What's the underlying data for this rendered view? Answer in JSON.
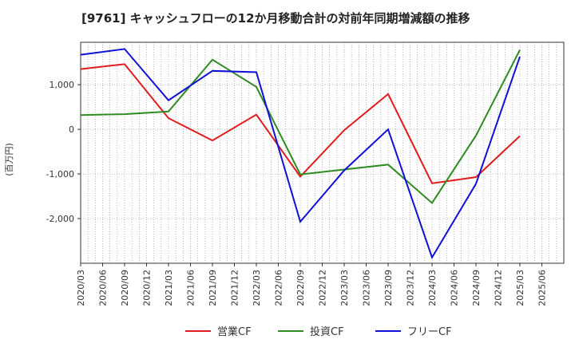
{
  "chart_data": {
    "type": "line",
    "title": "[9761]  キャッシュフローの12か月移動合計の対前年同期増減額の推移",
    "ylabel": "(百万円)",
    "xlabel": "",
    "ylim": [
      -3000,
      1950
    ],
    "yticks": [
      1000,
      0,
      -1000,
      -2000
    ],
    "ytick_labels": [
      "1,000",
      "0",
      "-1,000",
      "-2,000"
    ],
    "x_tick_labels": [
      "2020/03",
      "2020/06",
      "2020/09",
      "2020/12",
      "2021/03",
      "2021/06",
      "2021/09",
      "2021/12",
      "2022/03",
      "2022/06",
      "2022/09",
      "2022/12",
      "2023/03",
      "2023/06",
      "2023/09",
      "2023/12",
      "2024/03",
      "2024/06",
      "2024/09",
      "2024/12",
      "2025/03",
      "2025/06"
    ],
    "grid": true,
    "legend_position": "bottom",
    "series": [
      {
        "name": "営業CF",
        "color": "#e31a1c",
        "points": [
          {
            "x": "2020/03",
            "y": 1350
          },
          {
            "x": "2020/09",
            "y": 1460
          },
          {
            "x": "2021/03",
            "y": 250
          },
          {
            "x": "2021/09",
            "y": -250
          },
          {
            "x": "2022/03",
            "y": 330
          },
          {
            "x": "2022/09",
            "y": -1060
          },
          {
            "x": "2023/03",
            "y": -20
          },
          {
            "x": "2023/09",
            "y": 790
          },
          {
            "x": "2024/03",
            "y": -1210
          },
          {
            "x": "2024/09",
            "y": -1070
          },
          {
            "x": "2025/03",
            "y": -150
          }
        ]
      },
      {
        "name": "投資CF",
        "color": "#2e8b22",
        "points": [
          {
            "x": "2020/03",
            "y": 320
          },
          {
            "x": "2020/09",
            "y": 340
          },
          {
            "x": "2021/03",
            "y": 400
          },
          {
            "x": "2021/09",
            "y": 1560
          },
          {
            "x": "2022/03",
            "y": 950
          },
          {
            "x": "2022/09",
            "y": -1010
          },
          {
            "x": "2023/03",
            "y": -900
          },
          {
            "x": "2023/09",
            "y": -790
          },
          {
            "x": "2024/03",
            "y": -1650
          },
          {
            "x": "2024/09",
            "y": -140
          },
          {
            "x": "2025/03",
            "y": 1780
          }
        ]
      },
      {
        "name": "フリーCF",
        "color": "#1010d8",
        "points": [
          {
            "x": "2020/03",
            "y": 1670
          },
          {
            "x": "2020/09",
            "y": 1800
          },
          {
            "x": "2021/03",
            "y": 650
          },
          {
            "x": "2021/09",
            "y": 1310
          },
          {
            "x": "2022/03",
            "y": 1280
          },
          {
            "x": "2022/09",
            "y": -2070
          },
          {
            "x": "2023/03",
            "y": -920
          },
          {
            "x": "2023/09",
            "y": 0
          },
          {
            "x": "2024/03",
            "y": -2870
          },
          {
            "x": "2024/09",
            "y": -1220
          },
          {
            "x": "2025/03",
            "y": 1630
          }
        ]
      }
    ]
  }
}
